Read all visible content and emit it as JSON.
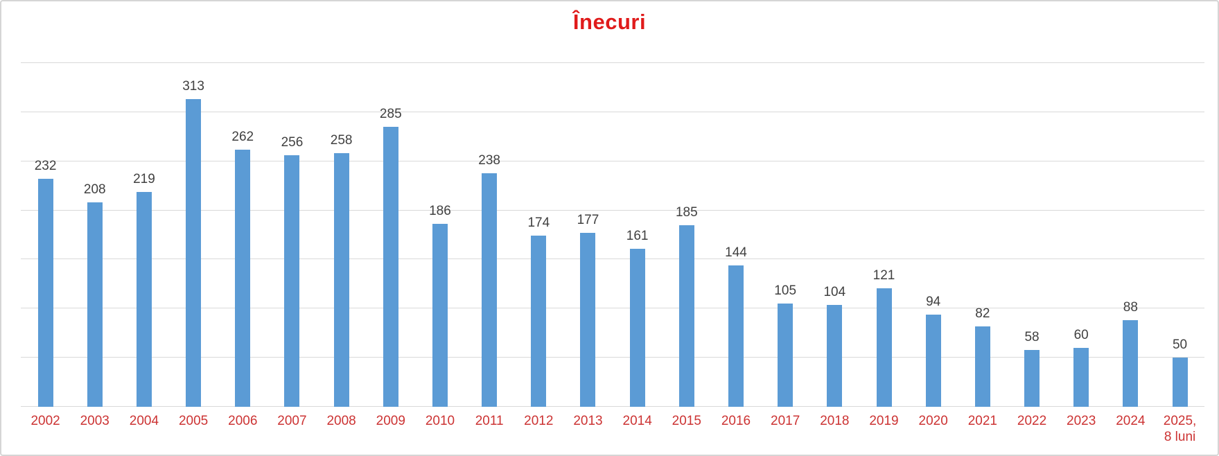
{
  "chart_data": {
    "type": "bar",
    "title": "Înecuri",
    "categories": [
      "2002",
      "2003",
      "2004",
      "2005",
      "2006",
      "2007",
      "2008",
      "2009",
      "2010",
      "2011",
      "2012",
      "2013",
      "2014",
      "2015",
      "2016",
      "2017",
      "2018",
      "2019",
      "2020",
      "2021",
      "2022",
      "2023",
      "2024",
      "2025,\n8 luni"
    ],
    "values": [
      232,
      208,
      219,
      313,
      262,
      256,
      258,
      285,
      186,
      238,
      174,
      177,
      161,
      185,
      144,
      105,
      104,
      121,
      94,
      82,
      58,
      60,
      88,
      50
    ],
    "xlabel": "",
    "ylabel": "",
    "ylim": [
      0,
      350
    ],
    "gridline_step": 50,
    "grid": "horizontal",
    "legend_position": "none",
    "data_labels": "above-bars",
    "colors": {
      "bar": "#5b9bd5",
      "title": "#e01b1b",
      "axis_labels": "#cc3333",
      "value_labels": "#404040",
      "gridline": "#d9d9d9",
      "frame_border": "#d5d5d5"
    }
  }
}
